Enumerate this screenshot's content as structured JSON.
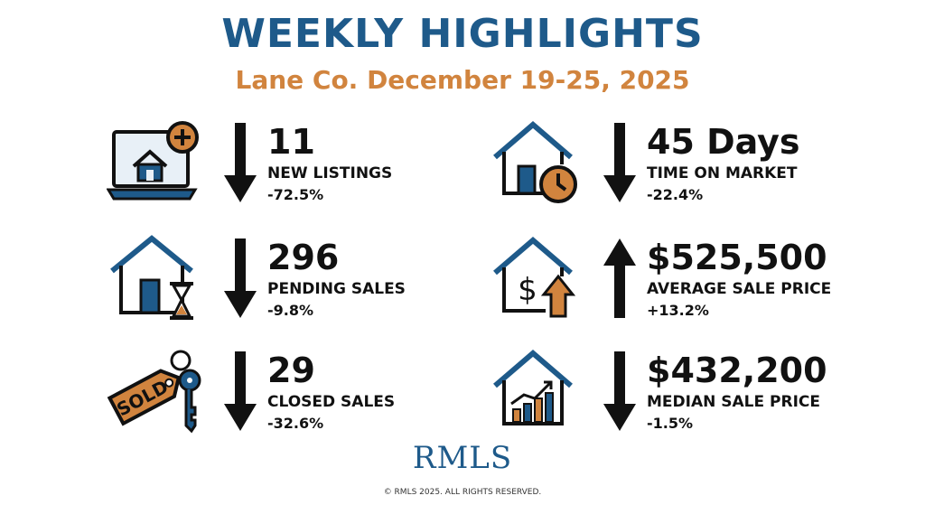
{
  "header": {
    "title": "WEEKLY HIGHLIGHTS",
    "subtitle": "Lane Co. December 19-25, 2025"
  },
  "stats": [
    {
      "value": "11",
      "label": "NEW LISTINGS",
      "change": "-72.5%",
      "direction": "down",
      "icon": "laptop-house-plus-icon"
    },
    {
      "value": "296",
      "label": "PENDING SALES",
      "change": "-9.8%",
      "direction": "down",
      "icon": "house-hourglass-icon"
    },
    {
      "value": "29",
      "label": "CLOSED SALES",
      "change": "-32.6%",
      "direction": "down",
      "icon": "sold-tag-key-icon"
    },
    {
      "value": "45 Days",
      "label": "TIME ON MARKET",
      "change": "-22.4%",
      "direction": "down",
      "icon": "house-clock-icon"
    },
    {
      "value": "$525,500",
      "label": "AVERAGE SALE PRICE",
      "change": "+13.2%",
      "direction": "up",
      "icon": "house-dollar-up-icon"
    },
    {
      "value": "$432,200",
      "label": "MEDIAN SALE PRICE",
      "change": "-1.5%",
      "direction": "down",
      "icon": "house-bar-chart-icon"
    }
  ],
  "icons": {
    "sold_text": "SOLD"
  },
  "footer": {
    "logo": "RMLS",
    "copyright": "© RMLS 2025. ALL RIGHTS RESERVED."
  },
  "colors": {
    "title": "#1e5a8a",
    "subtitle": "#d1843e",
    "accent_orange": "#d1843e",
    "icon_blue": "#1e5a8a",
    "arrow": "#111111"
  }
}
